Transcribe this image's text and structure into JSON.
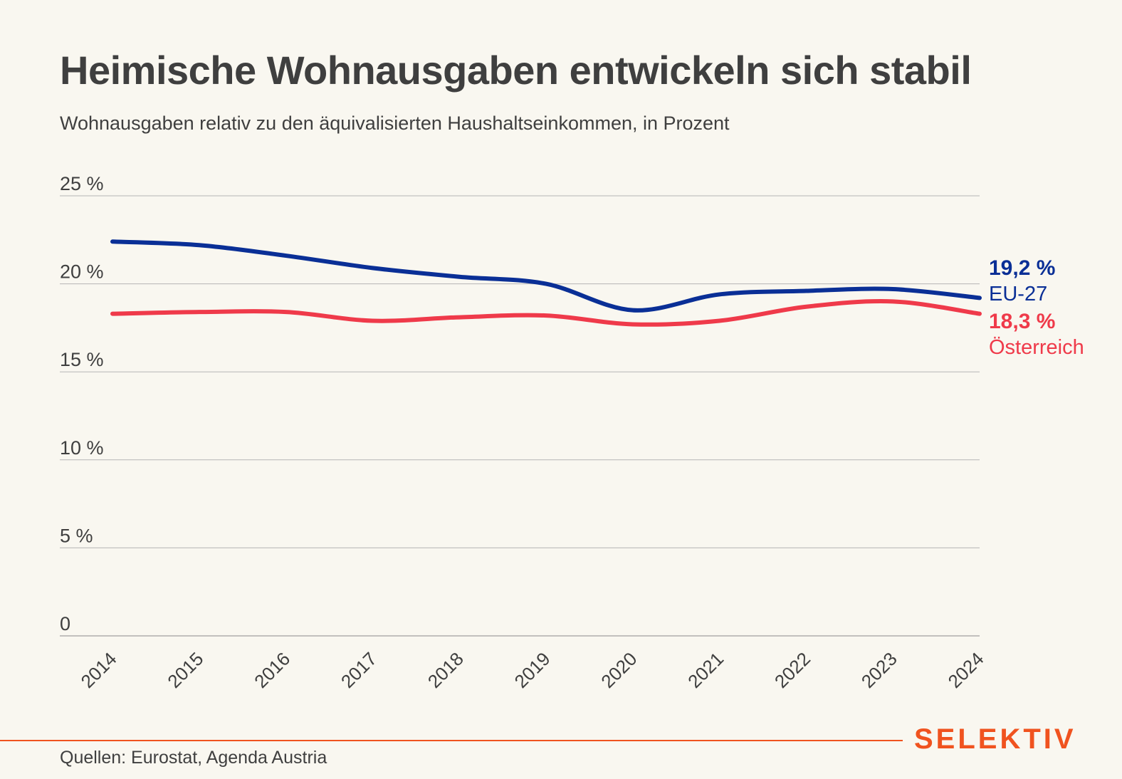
{
  "header": {
    "title": "Heimische Wohnausgaben entwickeln sich stabil",
    "subtitle": "Wohnausgaben relativ zu den äquivalisierten Haushaltseinkommen, in Prozent"
  },
  "footer": {
    "source": "Quellen: Eurostat, Agenda Austria",
    "brand": "SELEKTIV"
  },
  "chart_data": {
    "type": "line",
    "title": "Heimische Wohnausgaben entwickeln sich stabil",
    "subtitle": "Wohnausgaben relativ zu den äquivalisierten Haushaltseinkommen, in Prozent",
    "x": [
      "2014",
      "2015",
      "2016",
      "2017",
      "2018",
      "2019",
      "2020",
      "2021",
      "2022",
      "2023",
      "2024"
    ],
    "ylim": [
      0,
      25
    ],
    "yticks": [
      0,
      5,
      10,
      15,
      20,
      25
    ],
    "ytick_labels": [
      "0",
      "5 %",
      "10 %",
      "15 %",
      "20 %",
      "25 %"
    ],
    "grid": true,
    "series": [
      {
        "name": "EU-27",
        "color": "#0a2f96",
        "values": [
          22.4,
          22.2,
          21.6,
          20.9,
          20.4,
          20.0,
          18.5,
          19.4,
          19.6,
          19.7,
          19.2
        ],
        "end_label": "19,2 %"
      },
      {
        "name": "Österreich",
        "color": "#ef3a4a",
        "values": [
          18.3,
          18.4,
          18.4,
          17.9,
          18.1,
          18.2,
          17.7,
          17.9,
          18.7,
          19.0,
          18.3
        ],
        "end_label": "18,3 %"
      }
    ],
    "source": "Quellen: Eurostat, Agenda Austria"
  }
}
